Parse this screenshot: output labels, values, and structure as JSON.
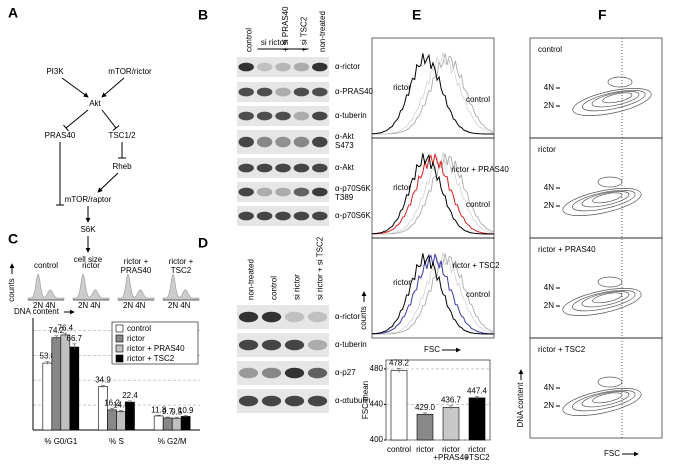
{
  "panel_labels": [
    "A",
    "B",
    "C",
    "D",
    "E",
    "F"
  ],
  "pathway": {
    "nodes": [
      "PI3K",
      "mTOR/rictor",
      "Akt",
      "PRAS40",
      "TSC1/2",
      "Rheb",
      "mTOR/raptor",
      "S6K",
      "cell size"
    ]
  },
  "blot_b": {
    "lanes": [
      "control",
      "+ si PRAS40",
      "+ si TSC2",
      "non-treated"
    ],
    "group": "si rictor",
    "rows": [
      [
        "α-rictor"
      ],
      [
        "α-PRAS40"
      ],
      [
        "α-tuberin"
      ],
      [
        "α-Akt",
        "S473"
      ],
      [
        "α-Akt"
      ],
      [
        "α-p70S6K",
        "T389"
      ],
      [
        "α-p70S6K"
      ]
    ]
  },
  "cell_cycle_profiles": {
    "labels": [
      [
        "control"
      ],
      [
        "rictor"
      ],
      [
        "rictor +",
        "PRAS40"
      ],
      [
        "rictor +",
        "TSC2"
      ]
    ],
    "ticks": [
      "2N",
      "4N"
    ],
    "y_label": "counts",
    "x_label": "DNA content"
  },
  "blot_d": {
    "lanes": [
      "non-treated",
      "control",
      "si rictor",
      "si rictor + si TSC2"
    ],
    "rows": [
      "α-rictor",
      "α-tuberin",
      "α-p27",
      "α-αtubulin"
    ]
  },
  "fsc_histograms": {
    "panels": [
      {
        "labels": [
          {
            "text": "rictor",
            "color": "#000000"
          },
          {
            "text": "control",
            "color": "#888888"
          }
        ]
      },
      {
        "labels": [
          {
            "text": "rictor",
            "color": "#000000"
          },
          {
            "text": "rictor + PRAS40",
            "color": "#d62020"
          },
          {
            "text": "control",
            "color": "#888888"
          }
        ]
      },
      {
        "labels": [
          {
            "text": "rictor",
            "color": "#000000"
          },
          {
            "text": "rictor + TSC2",
            "color": "#3a3aa8"
          },
          {
            "text": "control",
            "color": "#888888"
          }
        ]
      }
    ],
    "y_label": "counts",
    "x_label": "FSC"
  },
  "contours": {
    "labels": [
      "control",
      "rictor",
      "rictor + PRAS40",
      "rictor + TSC2"
    ],
    "ticks": [
      "4N",
      "2N"
    ],
    "y_label": "DNA content",
    "x_label": "FSC"
  },
  "chart_data": [
    {
      "type": "bar",
      "categories": [
        "% G0/G1",
        "% S",
        "% G2/M"
      ],
      "ylim": [
        0,
        90
      ],
      "yticks": [
        20,
        40,
        60,
        80
      ],
      "grid": true,
      "series": [
        {
          "name": "control",
          "color": "#ffffff",
          "values": [
            53.8,
            34.9,
            11.3
          ],
          "errors": [
            1.2,
            0.8,
            0.6
          ]
        },
        {
          "name": "rictor",
          "color": "#888888",
          "values": [
            74.2,
            16.2,
            9.7
          ],
          "errors": [
            1.5,
            1.2,
            0.7
          ]
        },
        {
          "name": "rictor + PRAS40",
          "color": "#c0c0c0",
          "values": [
            76.4,
            14.8,
            9.5
          ],
          "errors": [
            1.4,
            1.0,
            0.8
          ]
        },
        {
          "name": "rictor + TSC2",
          "color": "#000000",
          "values": [
            66.7,
            22.4,
            10.9
          ],
          "errors": [
            2.5,
            1.0,
            0.6
          ]
        }
      ]
    },
    {
      "type": "bar",
      "y_label": "FSC mean",
      "categories": [
        [
          "control"
        ],
        [
          "rictor"
        ],
        [
          "rictor",
          "+PRAS40"
        ],
        [
          "rictor",
          "+TSC2"
        ]
      ],
      "ylim": [
        400,
        490
      ],
      "yticks": [
        400,
        440,
        480
      ],
      "grid": true,
      "values": [
        478.2,
        429.0,
        436.7,
        447.4
      ],
      "value_labels": [
        "478.2",
        "429.0",
        "436.7",
        "447.4"
      ],
      "errors": [
        2.5,
        1.5,
        2.0,
        1.5
      ],
      "colors": [
        "#ffffff",
        "#888888",
        "#c8c8c8",
        "#000000"
      ]
    }
  ]
}
